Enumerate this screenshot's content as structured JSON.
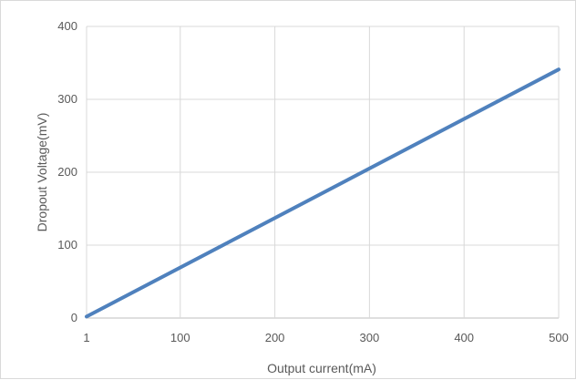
{
  "chart_data": {
    "type": "line",
    "xlabel": "Output current(mA)",
    "ylabel": "Dropout Voltage(mV)",
    "x_tick_labels": [
      "1",
      "100",
      "200",
      "300",
      "400",
      "500"
    ],
    "y_tick_labels": [
      "0",
      "100",
      "200",
      "300",
      "400"
    ],
    "xlim": [
      1,
      500
    ],
    "ylim": [
      0,
      400
    ],
    "grid": true,
    "series": [
      {
        "color": "#4f81bd",
        "x": [
          1,
          500
        ],
        "y": [
          2,
          341
        ]
      }
    ]
  }
}
